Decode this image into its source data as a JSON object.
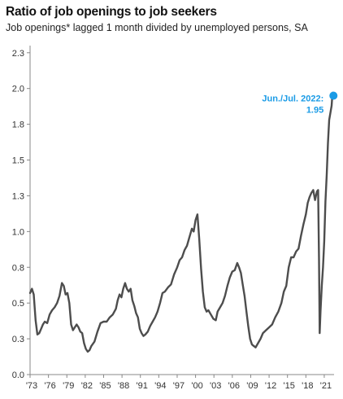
{
  "chart_data": {
    "type": "line",
    "title": "Ratio of job openings to job seekers",
    "subtitle": "Job openings* lagged 1 month divided by unemployed persons, SA",
    "xlabel": "",
    "ylabel": "",
    "ylim": [
      0.0,
      2.3
    ],
    "xlim": [
      1973,
      2022.6
    ],
    "yticks": [
      "0.0",
      "0.3",
      "0.5",
      "0.8",
      "1.0",
      "1.3",
      "1.5",
      "1.8",
      "2.0",
      "2.3"
    ],
    "ytick_values": [
      0.0,
      0.25,
      0.5,
      0.75,
      1.0,
      1.25,
      1.5,
      1.75,
      2.0,
      2.25
    ],
    "xticks": [
      "'73",
      "'76",
      "'79",
      "'82",
      "'85",
      "'88",
      "'91",
      "'94",
      "'97",
      "'00",
      "'03",
      "'06",
      "'09",
      "'12",
      "'15",
      "'18",
      "'21"
    ],
    "xtick_values": [
      1973,
      1976,
      1979,
      1982,
      1985,
      1988,
      1991,
      1994,
      1997,
      2000,
      2003,
      2006,
      2009,
      2012,
      2015,
      2018,
      2021
    ],
    "grid": false,
    "legend": "none",
    "line_color": "#4d4d4d",
    "marker_color": "#1a9be6",
    "series": [
      {
        "x": [
          1973.0,
          1973.3,
          1973.6,
          1973.9,
          1974.2,
          1974.5,
          1974.8,
          1975.1,
          1975.4,
          1975.8,
          1976.2,
          1976.6,
          1977.0,
          1977.4,
          1977.8,
          1978.2,
          1978.5,
          1978.8,
          1979.1,
          1979.4,
          1979.7,
          1980.0,
          1980.3,
          1980.6,
          1980.9,
          1981.2,
          1981.5,
          1981.8,
          1982.1,
          1982.4,
          1982.7,
          1983.0,
          1983.5,
          1984.0,
          1984.5,
          1985.0,
          1985.5,
          1986.0,
          1986.5,
          1987.0,
          1987.3,
          1987.6,
          1987.9,
          1988.2,
          1988.5,
          1988.8,
          1989.1,
          1989.4,
          1989.7,
          1990.0,
          1990.3,
          1990.6,
          1990.9,
          1991.2,
          1991.5,
          1991.8,
          1992.2,
          1992.6,
          1993.0,
          1993.4,
          1993.8,
          1994.2,
          1994.6,
          1995.0,
          1995.5,
          1996.0,
          1996.5,
          1997.0,
          1997.4,
          1997.8,
          1998.2,
          1998.6,
          1999.0,
          1999.4,
          1999.7,
          2000.0,
          2000.3,
          2000.6,
          2000.9,
          2001.2,
          2001.5,
          2001.8,
          2002.1,
          2002.5,
          2002.9,
          2003.3,
          2003.6,
          2004.0,
          2004.4,
          2004.8,
          2005.2,
          2005.6,
          2006.0,
          2006.4,
          2006.8,
          2007.1,
          2007.4,
          2007.7,
          2008.0,
          2008.3,
          2008.6,
          2008.9,
          2009.2,
          2009.5,
          2009.8,
          2010.2,
          2010.6,
          2011.0,
          2011.5,
          2012.0,
          2012.5,
          2013.0,
          2013.5,
          2014.0,
          2014.4,
          2014.8,
          2015.2,
          2015.6,
          2016.0,
          2016.4,
          2016.8,
          2017.2,
          2017.6,
          2018.0,
          2018.3,
          2018.6,
          2018.9,
          2019.2,
          2019.5,
          2019.8,
          2020.0,
          2020.15,
          2020.25,
          2020.4,
          2020.6,
          2020.8,
          2021.0,
          2021.2,
          2021.4,
          2021.6,
          2021.8,
          2022.0,
          2022.2,
          2022.35,
          2022.5
        ],
        "y": [
          0.57,
          0.6,
          0.56,
          0.38,
          0.28,
          0.29,
          0.32,
          0.35,
          0.37,
          0.36,
          0.42,
          0.45,
          0.47,
          0.5,
          0.55,
          0.64,
          0.62,
          0.56,
          0.57,
          0.5,
          0.35,
          0.31,
          0.33,
          0.35,
          0.33,
          0.3,
          0.29,
          0.22,
          0.18,
          0.16,
          0.17,
          0.2,
          0.23,
          0.3,
          0.36,
          0.37,
          0.37,
          0.4,
          0.42,
          0.46,
          0.52,
          0.56,
          0.54,
          0.6,
          0.64,
          0.6,
          0.58,
          0.6,
          0.52,
          0.48,
          0.43,
          0.4,
          0.32,
          0.29,
          0.27,
          0.28,
          0.3,
          0.34,
          0.37,
          0.4,
          0.44,
          0.5,
          0.57,
          0.58,
          0.61,
          0.63,
          0.7,
          0.75,
          0.8,
          0.82,
          0.87,
          0.9,
          0.96,
          1.02,
          1.0,
          1.08,
          1.12,
          0.95,
          0.74,
          0.58,
          0.47,
          0.44,
          0.45,
          0.42,
          0.39,
          0.38,
          0.44,
          0.47,
          0.5,
          0.55,
          0.62,
          0.68,
          0.72,
          0.73,
          0.78,
          0.75,
          0.71,
          0.63,
          0.55,
          0.44,
          0.34,
          0.25,
          0.21,
          0.2,
          0.19,
          0.22,
          0.25,
          0.29,
          0.31,
          0.33,
          0.35,
          0.4,
          0.44,
          0.5,
          0.58,
          0.62,
          0.75,
          0.82,
          0.82,
          0.86,
          0.88,
          0.97,
          1.05,
          1.12,
          1.2,
          1.24,
          1.27,
          1.29,
          1.22,
          1.28,
          1.29,
          0.8,
          0.29,
          0.45,
          0.62,
          0.75,
          0.93,
          1.21,
          1.4,
          1.62,
          1.78,
          1.83,
          1.88,
          1.97,
          1.95
        ]
      }
    ],
    "annotations": [
      {
        "text": "Jun./Jul. 2022:",
        "x": 2022.5,
        "y": 1.95
      },
      {
        "text": "1.95",
        "x": 2022.5,
        "y": 1.95
      }
    ]
  }
}
